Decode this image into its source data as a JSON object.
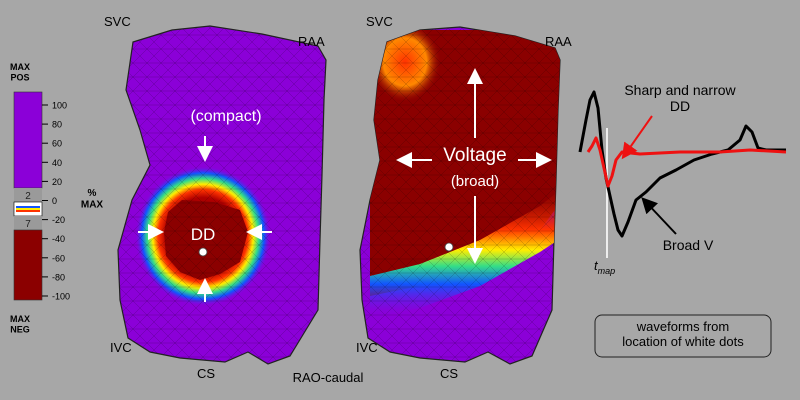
{
  "scale_bar": {
    "top_label": "MAX\nPOS",
    "bottom_label": "MAX\nNEG",
    "unit_label": "%\nMAX",
    "ticks": [
      "100",
      "80",
      "60",
      "40",
      "20",
      "0",
      "-20",
      "-40",
      "-60",
      "-80",
      "-100"
    ],
    "threshold_pos": "2",
    "threshold_neg": "7",
    "colors": {
      "positive": "#8b00d8",
      "negative": "#8b0000",
      "gap": "#9a9a9a"
    }
  },
  "left_map": {
    "labels": {
      "svc": "SVC",
      "raa": "RAA",
      "ivc": "IVC",
      "cs": "CS"
    },
    "annotation_compact": "(compact)",
    "annotation_dd": "DD"
  },
  "right_map": {
    "labels": {
      "svc": "SVC",
      "raa": "RAA",
      "ivc": "IVC",
      "cs": "CS"
    },
    "annotation_voltage": "Voltage",
    "annotation_broad": "(broad)"
  },
  "view_label": "RAO-caudal",
  "waveform_panel": {
    "sharp_label": "Sharp and narrow\nDD",
    "broad_label": "Broad V",
    "tmap_label": "t",
    "tmap_sub": "map",
    "caption": "waveforms from\nlocation of white dots",
    "colors": {
      "sharp": "#ee1111",
      "broad": "#000000"
    }
  }
}
